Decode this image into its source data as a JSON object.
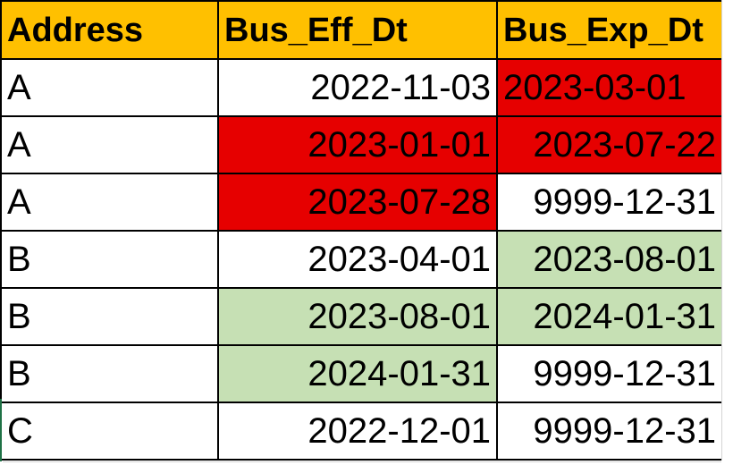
{
  "sheet": {
    "columns": [
      "Address",
      "Bus_Eff_Dt",
      "Bus_Exp_Dt"
    ],
    "rows": [
      {
        "address": "A",
        "bus_eff_dt": "2022-11-03",
        "bus_exp_dt": "2023-03-01",
        "eff_fill": "none",
        "exp_fill": "red",
        "exp_align": "left"
      },
      {
        "address": "A",
        "bus_eff_dt": "2023-01-01",
        "bus_exp_dt": "2023-07-22",
        "eff_fill": "red",
        "exp_fill": "red",
        "exp_align": "right"
      },
      {
        "address": "A",
        "bus_eff_dt": "2023-07-28",
        "bus_exp_dt": "9999-12-31",
        "eff_fill": "red",
        "exp_fill": "none",
        "exp_align": "right"
      },
      {
        "address": "B",
        "bus_eff_dt": "2023-04-01",
        "bus_exp_dt": "2023-08-01",
        "eff_fill": "none",
        "exp_fill": "green",
        "exp_align": "right"
      },
      {
        "address": "B",
        "bus_eff_dt": "2023-08-01",
        "bus_exp_dt": "2024-01-31",
        "eff_fill": "green",
        "exp_fill": "green",
        "exp_align": "right"
      },
      {
        "address": "B",
        "bus_eff_dt": "2024-01-31",
        "bus_exp_dt": "9999-12-31",
        "eff_fill": "green",
        "exp_fill": "none",
        "exp_align": "right"
      },
      {
        "address": "C",
        "bus_eff_dt": "2022-12-01",
        "bus_exp_dt": "9999-12-31",
        "eff_fill": "none",
        "exp_fill": "none",
        "exp_align": "right"
      }
    ]
  },
  "colors": {
    "header_fill": "#ffc000",
    "red_fill": "#e60000",
    "green_fill": "#c6e0b4",
    "border": "#000000"
  }
}
